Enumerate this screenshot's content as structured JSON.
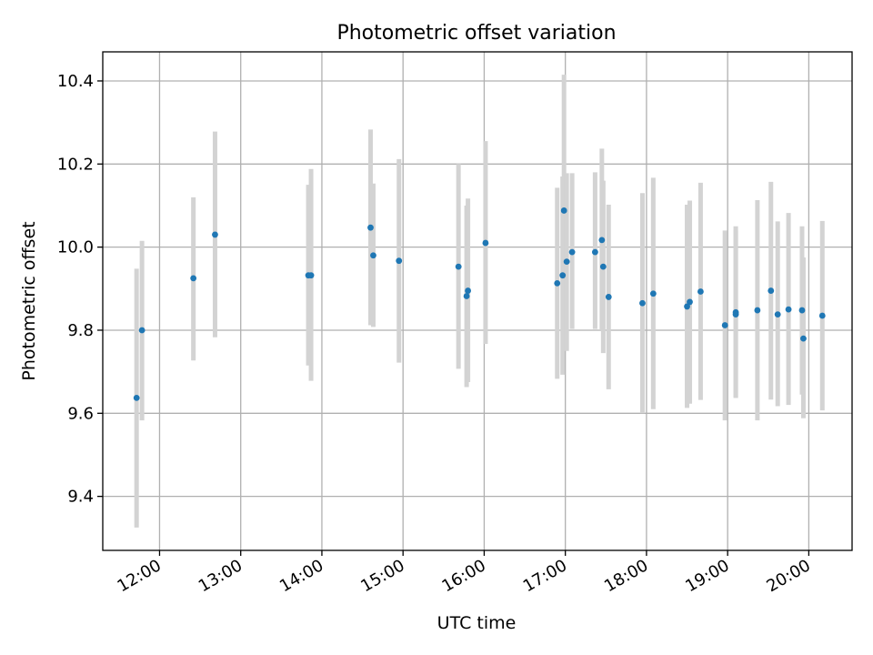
{
  "chart_data": {
    "type": "scatter",
    "title": "Photometric offset variation",
    "xlabel": "UTC time",
    "ylabel": "Photometric offset",
    "xlim": [
      "11:18",
      "20:32"
    ],
    "ylim": [
      9.27,
      10.47
    ],
    "x_ticks": [
      "12:00",
      "13:00",
      "14:00",
      "15:00",
      "16:00",
      "17:00",
      "18:00",
      "19:00",
      "20:00"
    ],
    "y_ticks": [
      9.4,
      9.6,
      9.8,
      10.0,
      10.2,
      10.4
    ],
    "y_tick_labels": [
      "9.4",
      "9.6",
      "9.8",
      "10.0",
      "10.2",
      "10.4"
    ],
    "grid": true,
    "point_color": "#1f77b4",
    "errorbar_color": "#d3d3d3",
    "points": [
      {
        "x": "11:43",
        "y": 9.637,
        "lo": 9.325,
        "hi": 9.948
      },
      {
        "x": "11:47",
        "y": 9.8,
        "lo": 9.583,
        "hi": 10.015
      },
      {
        "x": "12:25",
        "y": 9.925,
        "lo": 9.727,
        "hi": 10.12
      },
      {
        "x": "12:41",
        "y": 10.03,
        "lo": 9.783,
        "hi": 10.278
      },
      {
        "x": "13:50",
        "y": 9.932,
        "lo": 9.715,
        "hi": 10.15
      },
      {
        "x": "13:52",
        "y": 9.932,
        "lo": 9.678,
        "hi": 10.188
      },
      {
        "x": "14:36",
        "y": 10.047,
        "lo": 9.812,
        "hi": 10.283
      },
      {
        "x": "14:38",
        "y": 9.98,
        "lo": 9.808,
        "hi": 10.153
      },
      {
        "x": "14:57",
        "y": 9.967,
        "lo": 9.722,
        "hi": 10.212
      },
      {
        "x": "15:41",
        "y": 9.953,
        "lo": 9.707,
        "hi": 10.2
      },
      {
        "x": "15:47",
        "y": 9.882,
        "lo": 9.663,
        "hi": 10.1
      },
      {
        "x": "15:48",
        "y": 9.895,
        "lo": 9.675,
        "hi": 10.117
      },
      {
        "x": "16:01",
        "y": 10.01,
        "lo": 9.767,
        "hi": 10.255
      },
      {
        "x": "16:54",
        "y": 9.913,
        "lo": 9.683,
        "hi": 10.143
      },
      {
        "x": "16:58",
        "y": 9.932,
        "lo": 9.693,
        "hi": 10.17
      },
      {
        "x": "16:59",
        "y": 10.088,
        "lo": 9.76,
        "hi": 10.415
      },
      {
        "x": "17:01",
        "y": 9.965,
        "lo": 9.75,
        "hi": 10.178
      },
      {
        "x": "17:05",
        "y": 9.988,
        "lo": 9.803,
        "hi": 10.178
      },
      {
        "x": "17:22",
        "y": 9.988,
        "lo": 9.803,
        "hi": 10.18
      },
      {
        "x": "17:27",
        "y": 10.017,
        "lo": 9.8,
        "hi": 10.237
      },
      {
        "x": "17:28",
        "y": 9.953,
        "lo": 9.745,
        "hi": 10.16
      },
      {
        "x": "17:32",
        "y": 9.88,
        "lo": 9.658,
        "hi": 10.102
      },
      {
        "x": "17:57",
        "y": 9.865,
        "lo": 9.6,
        "hi": 10.13
      },
      {
        "x": "18:05",
        "y": 9.888,
        "lo": 9.61,
        "hi": 10.167
      },
      {
        "x": "18:30",
        "y": 9.857,
        "lo": 9.613,
        "hi": 10.102
      },
      {
        "x": "18:32",
        "y": 9.868,
        "lo": 9.623,
        "hi": 10.112
      },
      {
        "x": "18:40",
        "y": 9.893,
        "lo": 9.632,
        "hi": 10.155
      },
      {
        "x": "18:58",
        "y": 9.812,
        "lo": 9.583,
        "hi": 10.04
      },
      {
        "x": "19:06",
        "y": 9.843,
        "lo": 9.637,
        "hi": 10.05
      },
      {
        "x": "19:06",
        "y": 9.838,
        "lo": 9.637,
        "hi": 10.04
      },
      {
        "x": "19:22",
        "y": 9.848,
        "lo": 9.583,
        "hi": 10.113
      },
      {
        "x": "19:32",
        "y": 9.895,
        "lo": 9.633,
        "hi": 10.157
      },
      {
        "x": "19:37",
        "y": 9.838,
        "lo": 9.617,
        "hi": 10.062
      },
      {
        "x": "19:45",
        "y": 9.85,
        "lo": 9.62,
        "hi": 10.082
      },
      {
        "x": "19:55",
        "y": 9.848,
        "lo": 9.645,
        "hi": 10.05
      },
      {
        "x": "19:56",
        "y": 9.78,
        "lo": 9.588,
        "hi": 9.975
      },
      {
        "x": "20:10",
        "y": 9.835,
        "lo": 9.607,
        "hi": 10.063
      }
    ]
  }
}
